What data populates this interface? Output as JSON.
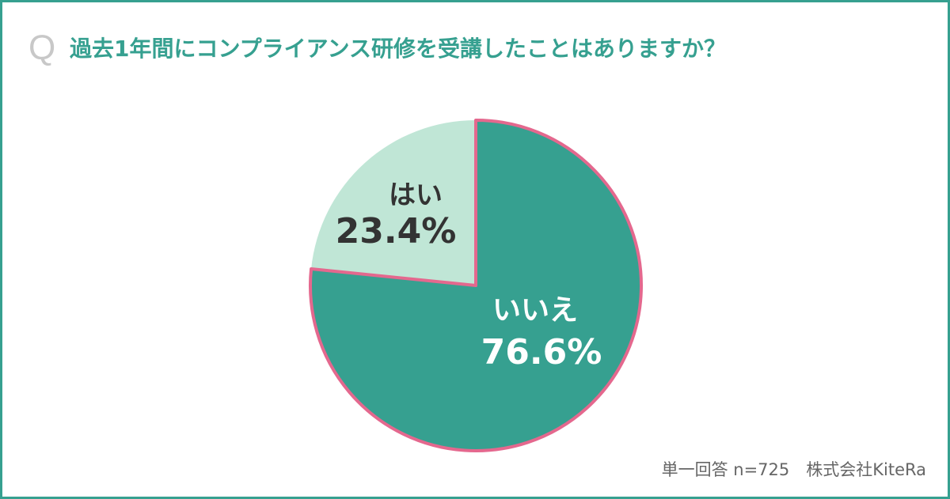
{
  "question_mark": "Q",
  "title": "過去1年間にコンプライアンス研修を受講したことはありますか？",
  "footer": "単一回答 n=725　株式会社KiteRa",
  "colors": {
    "border": "#36a090",
    "title": "#36a090",
    "no": "#36a090",
    "yes": "#c0e6d6",
    "stroke": "#e4688e",
    "label_dark": "#333333",
    "label_light": "#ffffff"
  },
  "chart_data": {
    "type": "pie",
    "title": "過去1年間にコンプライアンス研修を受講したことはありますか？",
    "start": "12 o'clock, clockwise",
    "slices": [
      {
        "label": "いいえ",
        "value": 76.6,
        "display": "76.6%",
        "color": "#36a090"
      },
      {
        "label": "はい",
        "value": 23.4,
        "display": "23.4%",
        "color": "#c0e6d6"
      }
    ]
  }
}
